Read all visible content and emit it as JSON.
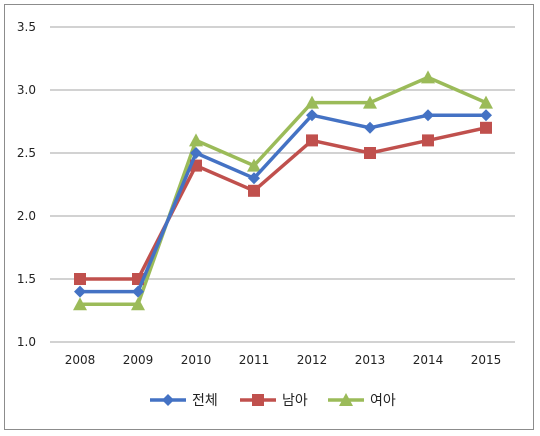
{
  "chart_data": {
    "type": "line",
    "title": "",
    "xlabel": "",
    "ylabel": "",
    "categories": [
      "2008",
      "2009",
      "2010",
      "2011",
      "2012",
      "2013",
      "2014",
      "2015"
    ],
    "ylim": [
      1.0,
      3.5
    ],
    "yticks": [
      "1.0",
      "1.5",
      "2.0",
      "2.5",
      "3.0",
      "3.5"
    ],
    "grid": "horizontal",
    "legend_position": "bottom",
    "series": [
      {
        "name": "전체",
        "color": "#4472c4",
        "marker": "diamond",
        "values": [
          1.4,
          1.4,
          2.5,
          2.3,
          2.8,
          2.7,
          2.8,
          2.8
        ]
      },
      {
        "name": "남아",
        "color": "#c0504d",
        "marker": "square",
        "values": [
          1.5,
          1.5,
          2.4,
          2.2,
          2.6,
          2.5,
          2.6,
          2.7
        ]
      },
      {
        "name": "여아",
        "color": "#9bbb59",
        "marker": "triangle",
        "values": [
          1.3,
          1.3,
          2.6,
          2.4,
          2.9,
          2.9,
          3.1,
          2.9
        ]
      }
    ]
  }
}
